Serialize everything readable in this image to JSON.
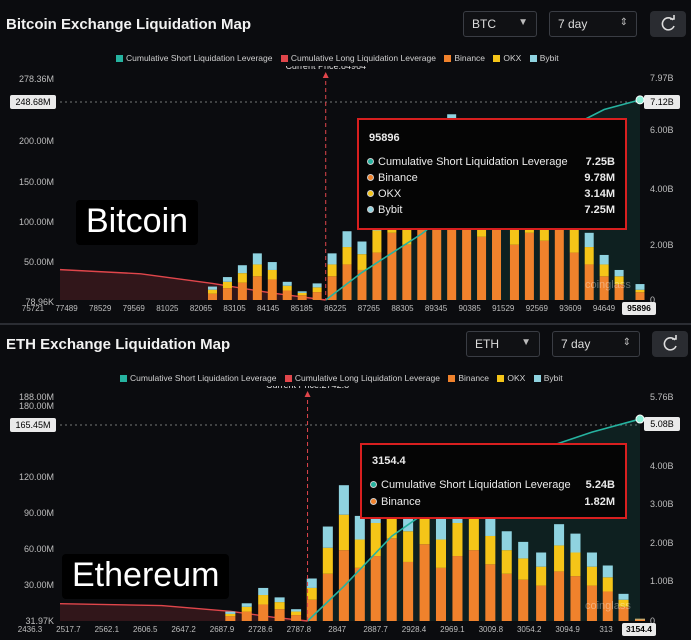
{
  "colors": {
    "short_leverage": "#26b3a0",
    "long_leverage": "#e0464b",
    "binance": "#f0822c",
    "okx": "#f5c518",
    "bybit": "#8fd3e0",
    "current_price_line": "#e0464b"
  },
  "legend": {
    "short": "Cumulative Short Liquidation Leverage",
    "long": "Cumulative Long Liquidation Leverage",
    "binance": "Binance",
    "okx": "OKX",
    "bybit": "Bybit"
  },
  "btc": {
    "title": "Bitcoin Exchange Liquidation Map",
    "coin_select": "BTC",
    "range_select": "7 day",
    "watermark_label": "Bitcoin",
    "current_price_label": "Current Price:84964",
    "y_left_ticks": [
      "278.36M",
      "200.00M",
      "150.00M",
      "100.00M",
      "50.00M",
      "78.96K"
    ],
    "y_left_highlight": "248.68M",
    "y_right_ticks": [
      "7.97B",
      "6.00B",
      "4.00B",
      "2.00B",
      "0"
    ],
    "y_right_highlight": "7.12B",
    "x_ticks": [
      "75721",
      "77489",
      "78529",
      "79569",
      "81025",
      "82065",
      "83105",
      "84145",
      "85185",
      "86225",
      "87265",
      "88305",
      "89345",
      "90385",
      "91529",
      "92569",
      "93609",
      "94649"
    ],
    "x_highlight": "95896",
    "tooltip": {
      "title": "95896",
      "rows": [
        {
          "label": "Cumulative Short Liquidation Leverage",
          "value": "7.25B",
          "icon": "short-dot-icon"
        },
        {
          "label": "Binance",
          "value": "9.78M",
          "icon": "binance-dot-icon"
        },
        {
          "label": "OKX",
          "value": "3.14M",
          "icon": "okx-dot-icon"
        },
        {
          "label": "Bybit",
          "value": "7.25M",
          "icon": "bybit-dot-icon"
        }
      ]
    }
  },
  "eth": {
    "title": "ETH Exchange Liquidation Map",
    "coin_select": "ETH",
    "range_select": "7 day",
    "watermark_label": "Ethereum",
    "current_price_label": "Current Price:2742.8",
    "y_left_ticks": [
      "188.00M",
      "180.00M",
      "120.00M",
      "90.00M",
      "60.00M",
      "30.00M",
      "31.97K"
    ],
    "y_left_highlight": "165.45M",
    "y_right_ticks": [
      "5.76B",
      "4.00B",
      "3.00B",
      "2.00B",
      "1.00B",
      "0"
    ],
    "y_right_highlight": "5.08B",
    "x_ticks": [
      "2436.3",
      "2517.7",
      "2562.1",
      "2606.5",
      "2647.2",
      "2687.9",
      "2728.6",
      "2787.8",
      "2847",
      "2887.7",
      "2928.4",
      "2969.1",
      "3009.8",
      "3054.2",
      "3094.9",
      "313"
    ],
    "x_highlight": "3154.4",
    "tooltip": {
      "title": "3154.4",
      "rows": [
        {
          "label": "Cumulative Short Liquidation Leverage",
          "value": "5.24B",
          "icon": "short-dot-icon"
        },
        {
          "label": "Binance",
          "value": "1.82M",
          "icon": "binance-dot-icon"
        }
      ]
    }
  },
  "chart_data": [
    {
      "type": "bar",
      "title": "Bitcoin Exchange Liquidation Map",
      "x_range": [
        75721,
        95896
      ],
      "current_price": 84964,
      "y_left_range": [
        0,
        278.36
      ],
      "y_left_unit": "M",
      "y_right_range": [
        0,
        7.97
      ],
      "y_right_unit": "B",
      "stacked_bars": {
        "x": [
          81025,
          81545,
          82065,
          82585,
          83105,
          83625,
          84145,
          84665,
          85185,
          85705,
          86225,
          86745,
          87265,
          87785,
          88305,
          88825,
          89345,
          89865,
          90385,
          90905,
          91529,
          92049,
          92569,
          93089,
          93609,
          94129,
          94649,
          95169,
          95896
        ],
        "series": [
          {
            "name": "Binance",
            "values": [
              8,
              15,
              22,
              30,
              26,
              12,
              6,
              10,
              30,
              45,
              38,
              60,
              85,
              70,
              95,
              110,
              130,
              90,
              80,
              95,
              70,
              85,
              75,
              95,
              60,
              45,
              30,
              20,
              9.78
            ]
          },
          {
            "name": "OKX",
            "values": [
              5,
              8,
              12,
              15,
              12,
              6,
              3,
              6,
              15,
              22,
              20,
              28,
              40,
              35,
              45,
              50,
              55,
              42,
              40,
              45,
              35,
              40,
              36,
              45,
              30,
              22,
              15,
              10,
              3.14
            ]
          },
          {
            "name": "Bybit",
            "values": [
              4,
              6,
              10,
              14,
              10,
              5,
              2,
              5,
              14,
              20,
              16,
              24,
              35,
              30,
              38,
              44,
              50,
              36,
              35,
              40,
              30,
              35,
              32,
              40,
              26,
              18,
              12,
              8,
              7.25
            ]
          }
        ]
      },
      "cumulative_long": {
        "x": [
          75721,
          78529,
          81025,
          83105,
          84964
        ],
        "values": [
          1.1,
          0.95,
          0.6,
          0.25,
          0.0
        ]
      },
      "cumulative_short": {
        "x": [
          84964,
          86225,
          88305,
          90385,
          92569,
          94649,
          95896
        ],
        "values": [
          0.0,
          1.0,
          2.4,
          4.1,
          5.8,
          6.9,
          7.25
        ]
      }
    },
    {
      "type": "bar",
      "title": "ETH Exchange Liquidation Map",
      "x_range": [
        2436.3,
        3154.4
      ],
      "current_price": 2742.8,
      "y_left_range": [
        0,
        188.0
      ],
      "y_left_unit": "M",
      "y_right_range": [
        0,
        5.76
      ],
      "y_right_unit": "B",
      "stacked_bars": {
        "x": [
          2647.2,
          2667.5,
          2687.9,
          2708.2,
          2728.6,
          2748.0,
          2767.9,
          2787.8,
          2807.5,
          2827.2,
          2847,
          2867.3,
          2887.7,
          2908.0,
          2928.4,
          2948.7,
          2969.1,
          2989.4,
          3009.8,
          3032.0,
          3054.2,
          3074.5,
          3094.9,
          3114.5,
          3134.0,
          3154.4
        ],
        "series": [
          {
            "name": "Binance",
            "values": [
              4,
              8,
              14,
              10,
              5,
              18,
              40,
              60,
              45,
              55,
              70,
              50,
              65,
              45,
              55,
              60,
              48,
              40,
              35,
              30,
              42,
              38,
              30,
              25,
              12,
              1.82
            ]
          },
          {
            "name": "OKX",
            "values": [
              2,
              4,
              8,
              6,
              3,
              10,
              22,
              30,
              24,
              28,
              35,
              26,
              32,
              24,
              28,
              30,
              24,
              20,
              18,
              16,
              22,
              20,
              16,
              12,
              6,
              0
            ]
          },
          {
            "name": "Bybit",
            "values": [
              2,
              3,
              6,
              4,
              2,
              8,
              18,
              25,
              20,
              22,
              28,
              20,
              26,
              20,
              22,
              25,
              20,
              16,
              14,
              12,
              18,
              16,
              12,
              10,
              5,
              0
            ]
          }
        ]
      },
      "cumulative_long": {
        "x": [
          2436.3,
          2562.1,
          2647.2,
          2700.0,
          2742.8
        ],
        "values": [
          0.45,
          0.4,
          0.25,
          0.1,
          0.0
        ]
      },
      "cumulative_short": {
        "x": [
          2742.8,
          2787.8,
          2847,
          2928.4,
          3009.8,
          3094.9,
          3154.4
        ],
        "values": [
          0.0,
          0.9,
          2.2,
          3.4,
          4.3,
          4.9,
          5.24
        ]
      }
    }
  ]
}
